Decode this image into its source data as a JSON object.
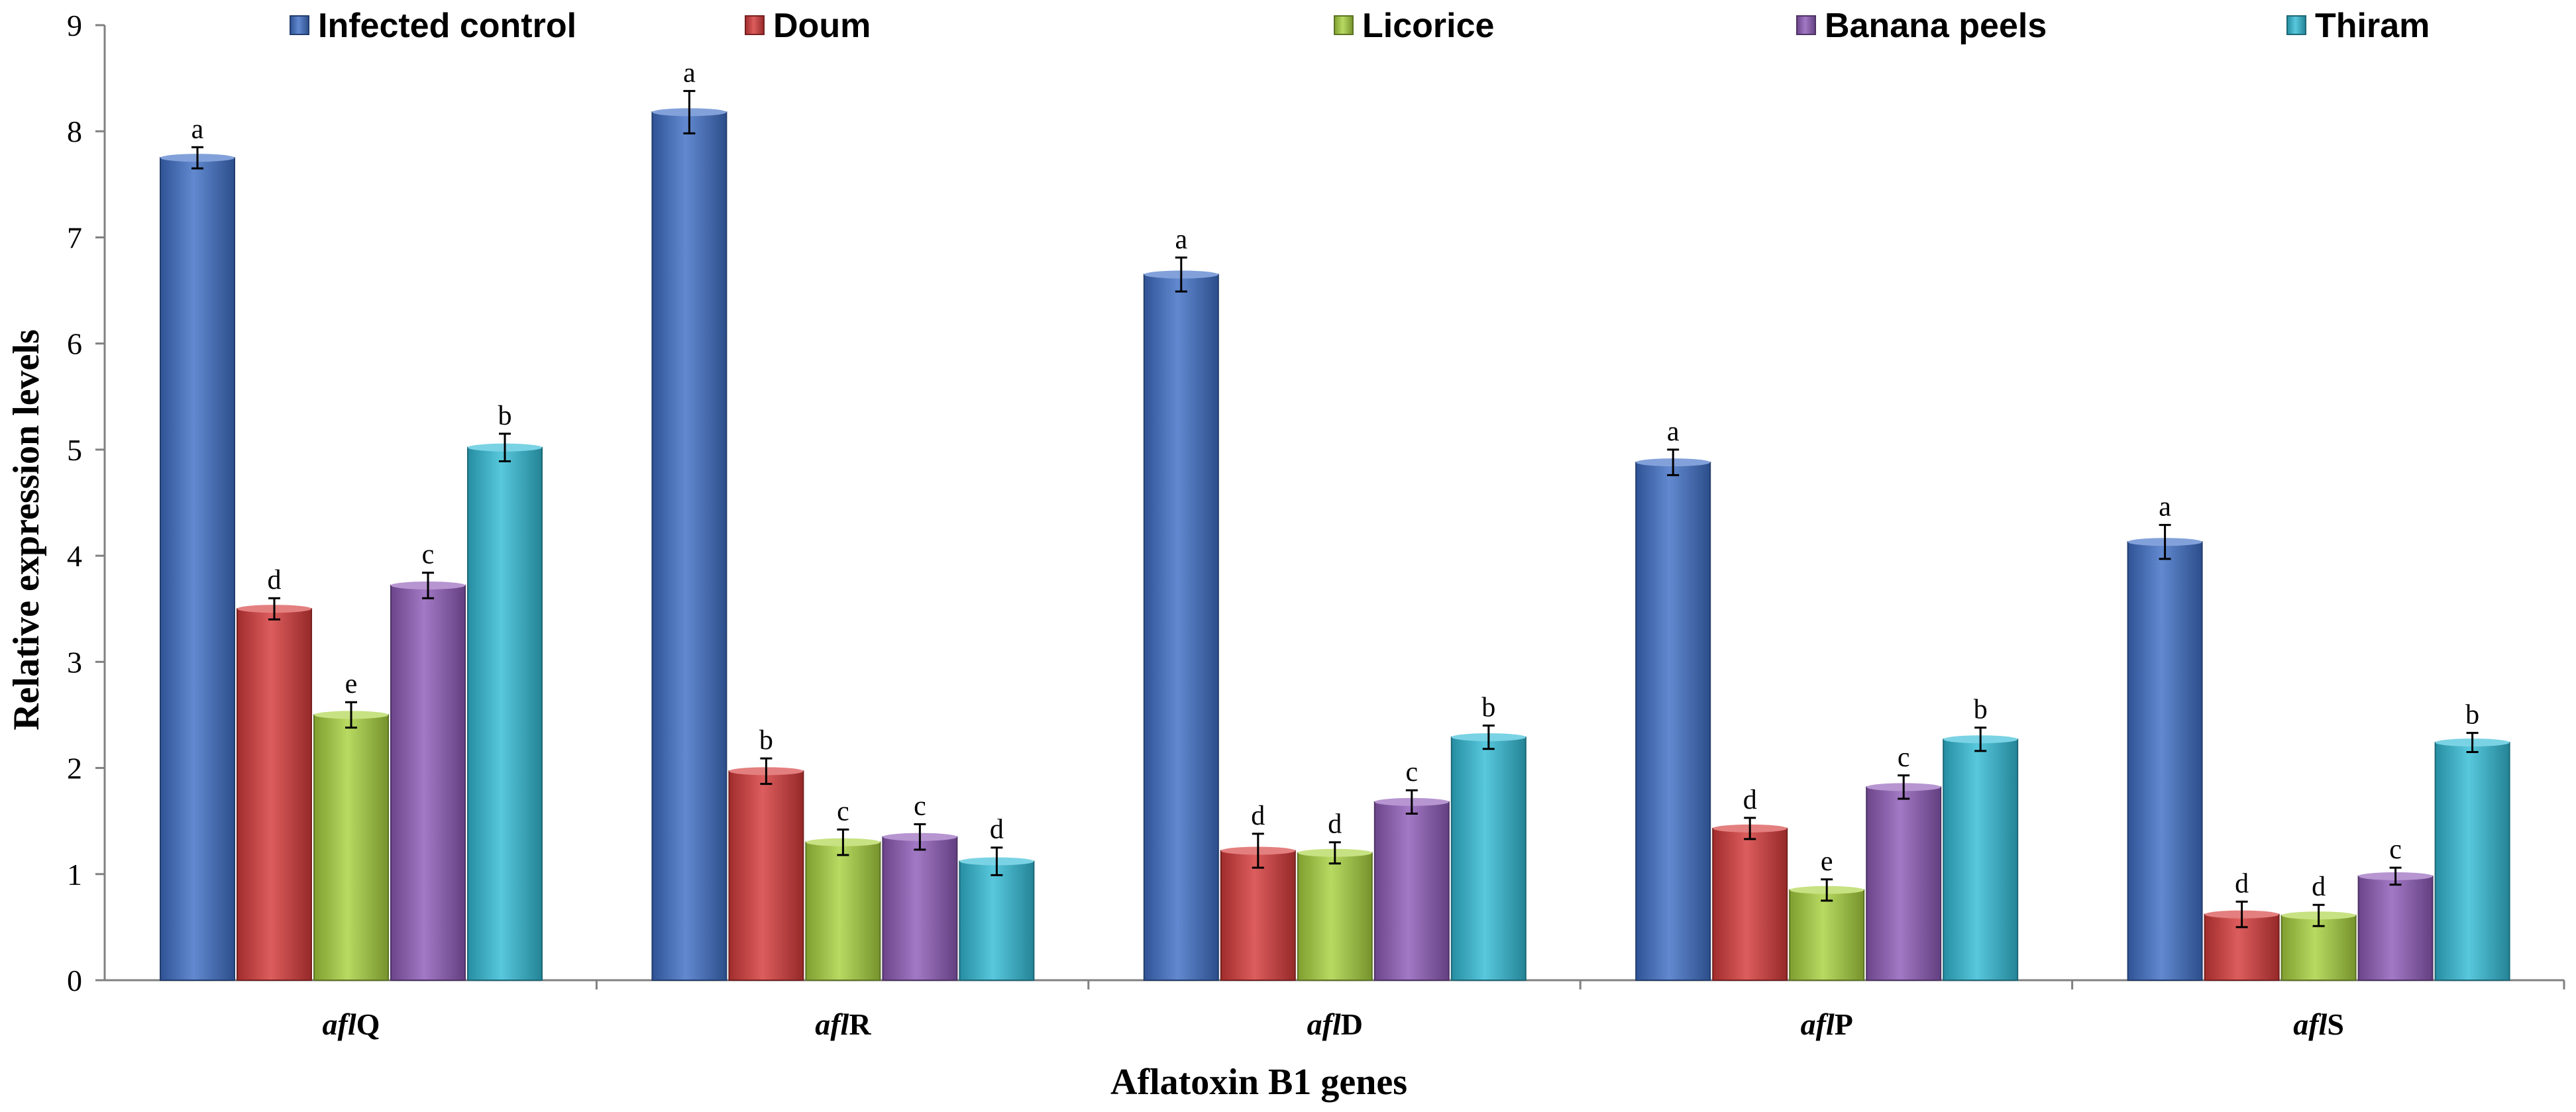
{
  "chart_data": {
    "type": "bar",
    "title": "",
    "xlabel": "Aflatoxin B1 genes",
    "ylabel": "Relative expression levels",
    "ylim": [
      0,
      9
    ],
    "yticks": [
      0,
      1,
      2,
      3,
      4,
      5,
      6,
      7,
      8,
      9
    ],
    "grid": false,
    "legend_position": "top",
    "categories": [
      {
        "prefix": "afl",
        "suffix": "Q"
      },
      {
        "prefix": "afl",
        "suffix": "R"
      },
      {
        "prefix": "afl",
        "suffix": "D"
      },
      {
        "prefix": "afl",
        "suffix": "P"
      },
      {
        "prefix": "afl",
        "suffix": "S"
      }
    ],
    "series": [
      {
        "name": "Infected control",
        "color": "#3F6FC6",
        "values": [
          7.75,
          8.18,
          6.65,
          4.88,
          4.13
        ],
        "errors": [
          0.1,
          0.2,
          0.16,
          0.12,
          0.16
        ],
        "letters": [
          "a",
          "a",
          "a",
          "a",
          "a"
        ]
      },
      {
        "name": "Doum",
        "color": "#D63A3A",
        "values": [
          3.5,
          1.97,
          1.22,
          1.43,
          0.62
        ],
        "errors": [
          0.1,
          0.12,
          0.16,
          0.1,
          0.12
        ],
        "letters": [
          "d",
          "b",
          "d",
          "d",
          "d"
        ]
      },
      {
        "name": "Licorice",
        "color": "#A9D23F",
        "values": [
          2.5,
          1.3,
          1.2,
          0.85,
          0.61
        ],
        "errors": [
          0.12,
          0.12,
          0.1,
          0.1,
          0.1
        ],
        "letters": [
          "e",
          "c",
          "d",
          "e",
          "d"
        ]
      },
      {
        "name": "Banana peels",
        "color": "#8E5CB8",
        "values": [
          3.72,
          1.35,
          1.68,
          1.82,
          0.98
        ],
        "errors": [
          0.12,
          0.12,
          0.11,
          0.11,
          0.08
        ],
        "letters": [
          "c",
          "c",
          "c",
          "c",
          "c"
        ]
      },
      {
        "name": "Thiram",
        "color": "#33BCD6",
        "values": [
          5.02,
          1.12,
          2.29,
          2.27,
          2.24
        ],
        "errors": [
          0.13,
          0.13,
          0.11,
          0.11,
          0.09
        ],
        "letters": [
          "b",
          "d",
          "b",
          "b",
          "b"
        ]
      }
    ]
  }
}
